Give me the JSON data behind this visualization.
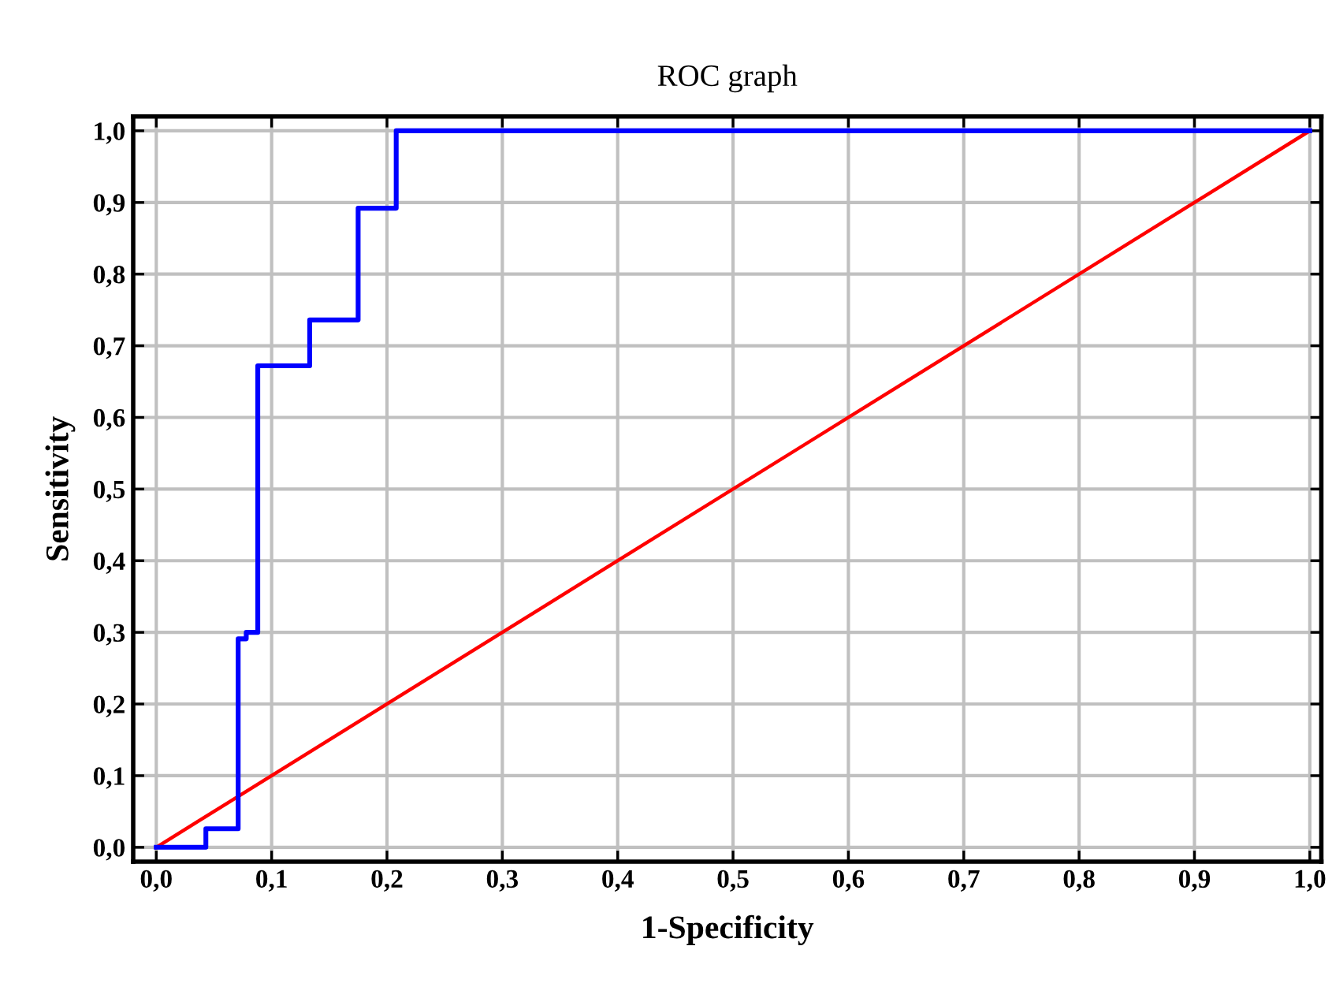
{
  "chart_data": {
    "type": "step",
    "title": "ROC graph",
    "xlabel": "1-Specificity",
    "ylabel": "Sensitivity",
    "xlim": [
      -0.02,
      1.01
    ],
    "ylim": [
      -0.02,
      1.02
    ],
    "xticks": [
      {
        "value": 0,
        "label": "0,0"
      },
      {
        "value": 0.1,
        "label": "0,1"
      },
      {
        "value": 0.2,
        "label": "0,2"
      },
      {
        "value": 0.3,
        "label": "0,3"
      },
      {
        "value": 0.4,
        "label": "0,4"
      },
      {
        "value": 0.5,
        "label": "0,5"
      },
      {
        "value": 0.6,
        "label": "0,6"
      },
      {
        "value": 0.7,
        "label": "0,7"
      },
      {
        "value": 0.8,
        "label": "0,8"
      },
      {
        "value": 0.9,
        "label": "0,9"
      },
      {
        "value": 1,
        "label": "1,0"
      }
    ],
    "yticks": [
      {
        "value": 0,
        "label": "0,0"
      },
      {
        "value": 0.1,
        "label": "0,1"
      },
      {
        "value": 0.2,
        "label": "0,2"
      },
      {
        "value": 0.3,
        "label": "0,3"
      },
      {
        "value": 0.4,
        "label": "0,4"
      },
      {
        "value": 0.5,
        "label": "0,5"
      },
      {
        "value": 0.6,
        "label": "0,6"
      },
      {
        "value": 0.7,
        "label": "0,7"
      },
      {
        "value": 0.8,
        "label": "0,8"
      },
      {
        "value": 0.9,
        "label": "0,9"
      },
      {
        "value": 1,
        "label": "1,0"
      }
    ],
    "grid": true,
    "marker": "none",
    "line_style": "solid",
    "series": [
      {
        "color": "#0000ff",
        "x": [
          0,
          0.043,
          0.071,
          0.078,
          0.088,
          0.133,
          0.175,
          0.208,
          1.0
        ],
        "values": [
          0,
          0.026,
          0.291,
          0.3,
          0.672,
          0.736,
          0.892,
          1.0,
          1.0
        ]
      },
      {
        "type": "line",
        "color": "#ff0000",
        "x": [
          0,
          1
        ],
        "values": [
          0,
          1
        ]
      }
    ]
  }
}
